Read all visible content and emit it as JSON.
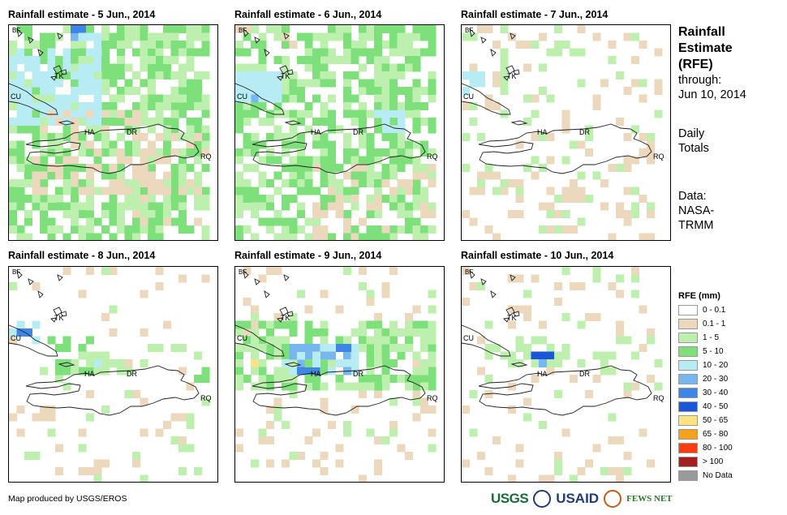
{
  "panels": [
    {
      "title": "Rainfall estimate - 5 Jun., 2014"
    },
    {
      "title": "Rainfall estimate - 6 Jun., 2014"
    },
    {
      "title": "Rainfall estimate - 7 Jun., 2014"
    },
    {
      "title": "Rainfall estimate - 8 Jun., 2014"
    },
    {
      "title": "Rainfall estimate - 9 Jun., 2014"
    },
    {
      "title": "Rainfall estimate - 10 Jun., 2014"
    }
  ],
  "map_labels": {
    "bf": "BF",
    "tk": "TK",
    "cu": "CU",
    "ha": "HA",
    "dr": "DR",
    "rq": "RQ"
  },
  "side": {
    "title_line1": "Rainfall",
    "title_line2": "Estimate",
    "title_line3": "(RFE)",
    "through": "through:",
    "date": "Jun 10, 2014",
    "daily1": "Daily",
    "daily2": "Totals",
    "data1": "Data:",
    "data2": "NASA-",
    "data3": "TRMM"
  },
  "legend": {
    "title": "RFE (mm)",
    "items": [
      {
        "label": "0 - 0.1",
        "color": "#ffffff"
      },
      {
        "label": "0.1 - 1",
        "color": "#ecd9bd"
      },
      {
        "label": "1 - 5",
        "color": "#bdf0ae"
      },
      {
        "label": "5 - 10",
        "color": "#7ee07a"
      },
      {
        "label": "10 - 20",
        "color": "#b8ecf5"
      },
      {
        "label": "20 - 30",
        "color": "#78b6f0"
      },
      {
        "label": "30 - 40",
        "color": "#3e86e6"
      },
      {
        "label": "40 - 50",
        "color": "#1b55d8"
      },
      {
        "label": "50 - 65",
        "color": "#fde382"
      },
      {
        "label": "65 - 80",
        "color": "#f8a21c"
      },
      {
        "label": "80 - 100",
        "color": "#ff3b10"
      },
      {
        "label": "> 100",
        "color": "#a31f1f"
      },
      {
        "label": "No Data",
        "color": "#9a9a9a"
      }
    ]
  },
  "footer": {
    "produced_by": "Map produced by USGS/EROS"
  },
  "logos": {
    "usgs": "USGS",
    "usaid": "USAID",
    "fews": "FEWS NET"
  }
}
